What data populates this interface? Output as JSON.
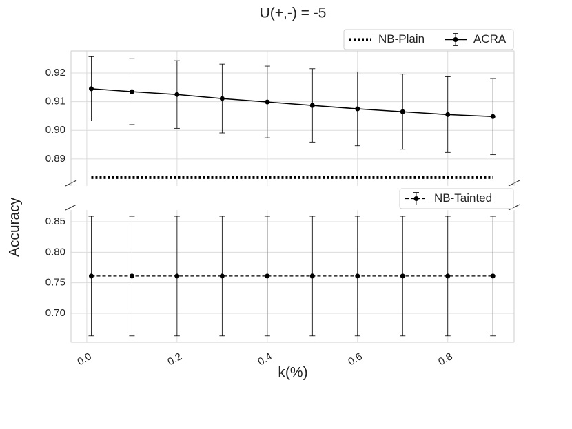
{
  "chart_data": [
    {
      "type": "line",
      "title": "U(+,-) = -5",
      "ylabel": "Accuracy",
      "x": [
        0.01,
        0.1,
        0.2,
        0.3,
        0.4,
        0.5,
        0.6,
        0.7,
        0.8,
        0.9
      ],
      "xlim": [
        -0.035,
        0.947
      ],
      "xticks": [
        {
          "value": 0,
          "label": "0.0"
        },
        0.2,
        0.4,
        0.6,
        0.8
      ],
      "ylim": [
        0.8806,
        0.9277
      ],
      "yticks": [
        0.89,
        {
          "value": 0.9,
          "label": "0.90"
        },
        0.91,
        0.92
      ],
      "grid": true,
      "legend": "upper right",
      "series": [
        {
          "name": "NB-Plain",
          "color": "#000000",
          "linestyle": "dotted",
          "marker": false,
          "values": [
            0.8835,
            0.8835,
            0.8835,
            0.8835,
            0.8835,
            0.8835,
            0.8835,
            0.8835,
            0.8835,
            0.8835
          ]
        },
        {
          "name": "ACRA",
          "color": "#000000",
          "linestyle": "solid",
          "marker": true,
          "values": [
            0.9145,
            0.9135,
            0.9125,
            0.9111,
            0.9099,
            0.9087,
            0.9075,
            0.9065,
            0.9055,
            0.9048
          ],
          "errors": [
            0.0112,
            0.0115,
            0.0118,
            0.012,
            0.0125,
            0.0128,
            0.0129,
            0.0131,
            0.0132,
            0.0133
          ]
        }
      ]
    },
    {
      "type": "line",
      "xlabel": "k(%)",
      "x": [
        0.01,
        0.1,
        0.2,
        0.3,
        0.4,
        0.5,
        0.6,
        0.7,
        0.8,
        0.9
      ],
      "xlim": [
        -0.035,
        0.947
      ],
      "xticks": [
        {
          "value": 0,
          "label": "0.0"
        },
        0.2,
        0.4,
        0.6,
        0.8
      ],
      "ylim": [
        0.6526,
        0.8692
      ],
      "yticks": [
        {
          "value": 0.7,
          "label": "0.70"
        },
        0.75,
        {
          "value": 0.8,
          "label": "0.80"
        },
        0.85
      ],
      "grid": true,
      "legend": "upper right",
      "series": [
        {
          "name": "NB-Tainted",
          "color": "#000000",
          "linestyle": "dashed",
          "marker": true,
          "values": [
            0.761,
            0.761,
            0.761,
            0.761,
            0.761,
            0.761,
            0.761,
            0.761,
            0.761,
            0.761
          ],
          "errors": [
            0.098,
            0.098,
            0.098,
            0.098,
            0.098,
            0.098,
            0.098,
            0.098,
            0.098,
            0.098
          ]
        }
      ]
    }
  ]
}
